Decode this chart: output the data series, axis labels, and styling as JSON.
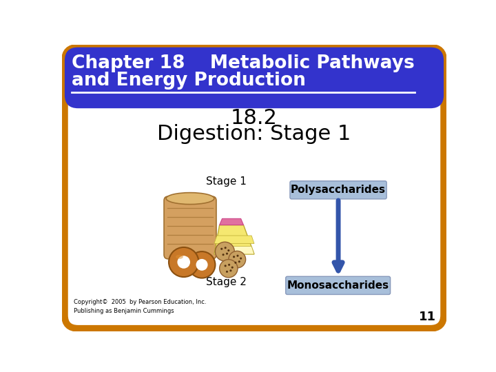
{
  "title_line1": "Chapter 18    Metabolic Pathways",
  "title_line2": "and Energy Production",
  "subtitle_line1": "18.2",
  "subtitle_line2": "Digestion: Stage 1",
  "stage1_label": "Stage 1",
  "stage2_label": "Stage 2",
  "poly_label": "Polysaccharides",
  "mono_label": "Monosaccharides",
  "copyright": "Copyright©  2005  by Pearson Education, Inc.\nPublishing as Benjamin Cummings",
  "page_number": "11",
  "header_bg": "#3333CC",
  "header_text": "#FFFFFF",
  "slide_bg": "#FFFFFF",
  "border_color": "#CC7700",
  "poly_box_bg": "#A8BFDA",
  "mono_box_bg": "#A8BFDA",
  "arrow_color": "#3355AA",
  "subtitle_color": "#000000",
  "stage_label_color": "#000000",
  "bread_color": "#D4A060",
  "bread_edge": "#A07030",
  "cake_fill": "#F5E870",
  "cake_pink": "#E070A0",
  "bagel_color": "#C87828",
  "bagel_edge": "#8B5010",
  "cookie_color": "#C8A060",
  "cookie_edge": "#906030"
}
